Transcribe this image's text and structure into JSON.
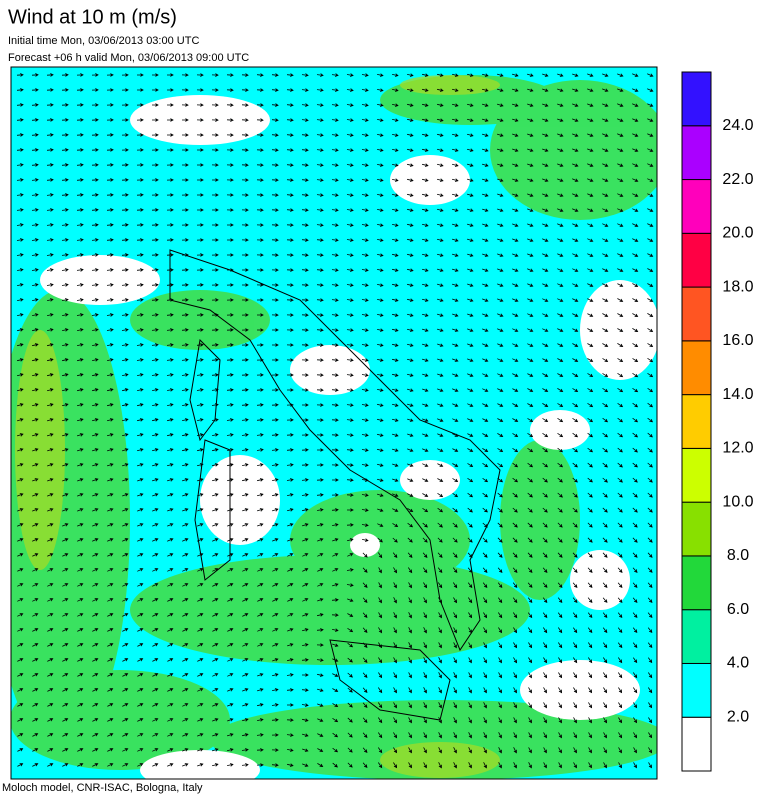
{
  "header": {
    "title": "Wind at 10 m (m/s)",
    "initial_time": "Initial time  Mon, 03/06/2013 03:00 UTC",
    "forecast": "Forecast +06 h valid  Mon, 03/06/2013 09:00 UTC"
  },
  "colorbar": {
    "colors": [
      "#ffffff",
      "#00ffff",
      "#00f0a0",
      "#22d83a",
      "#88e000",
      "#ccff00",
      "#ffcc00",
      "#ff8c00",
      "#ff5522",
      "#ff0044",
      "#ff00bb",
      "#aa00ff",
      "#3311ff"
    ],
    "labels": [
      "2.0",
      "4.0",
      "6.0",
      "8.0",
      "10.0",
      "12.0",
      "14.0",
      "16.0",
      "18.0",
      "20.0",
      "22.0",
      "24.0"
    ]
  },
  "footer": "Moloch model, CNR-ISAC, Bologna, Italy"
}
